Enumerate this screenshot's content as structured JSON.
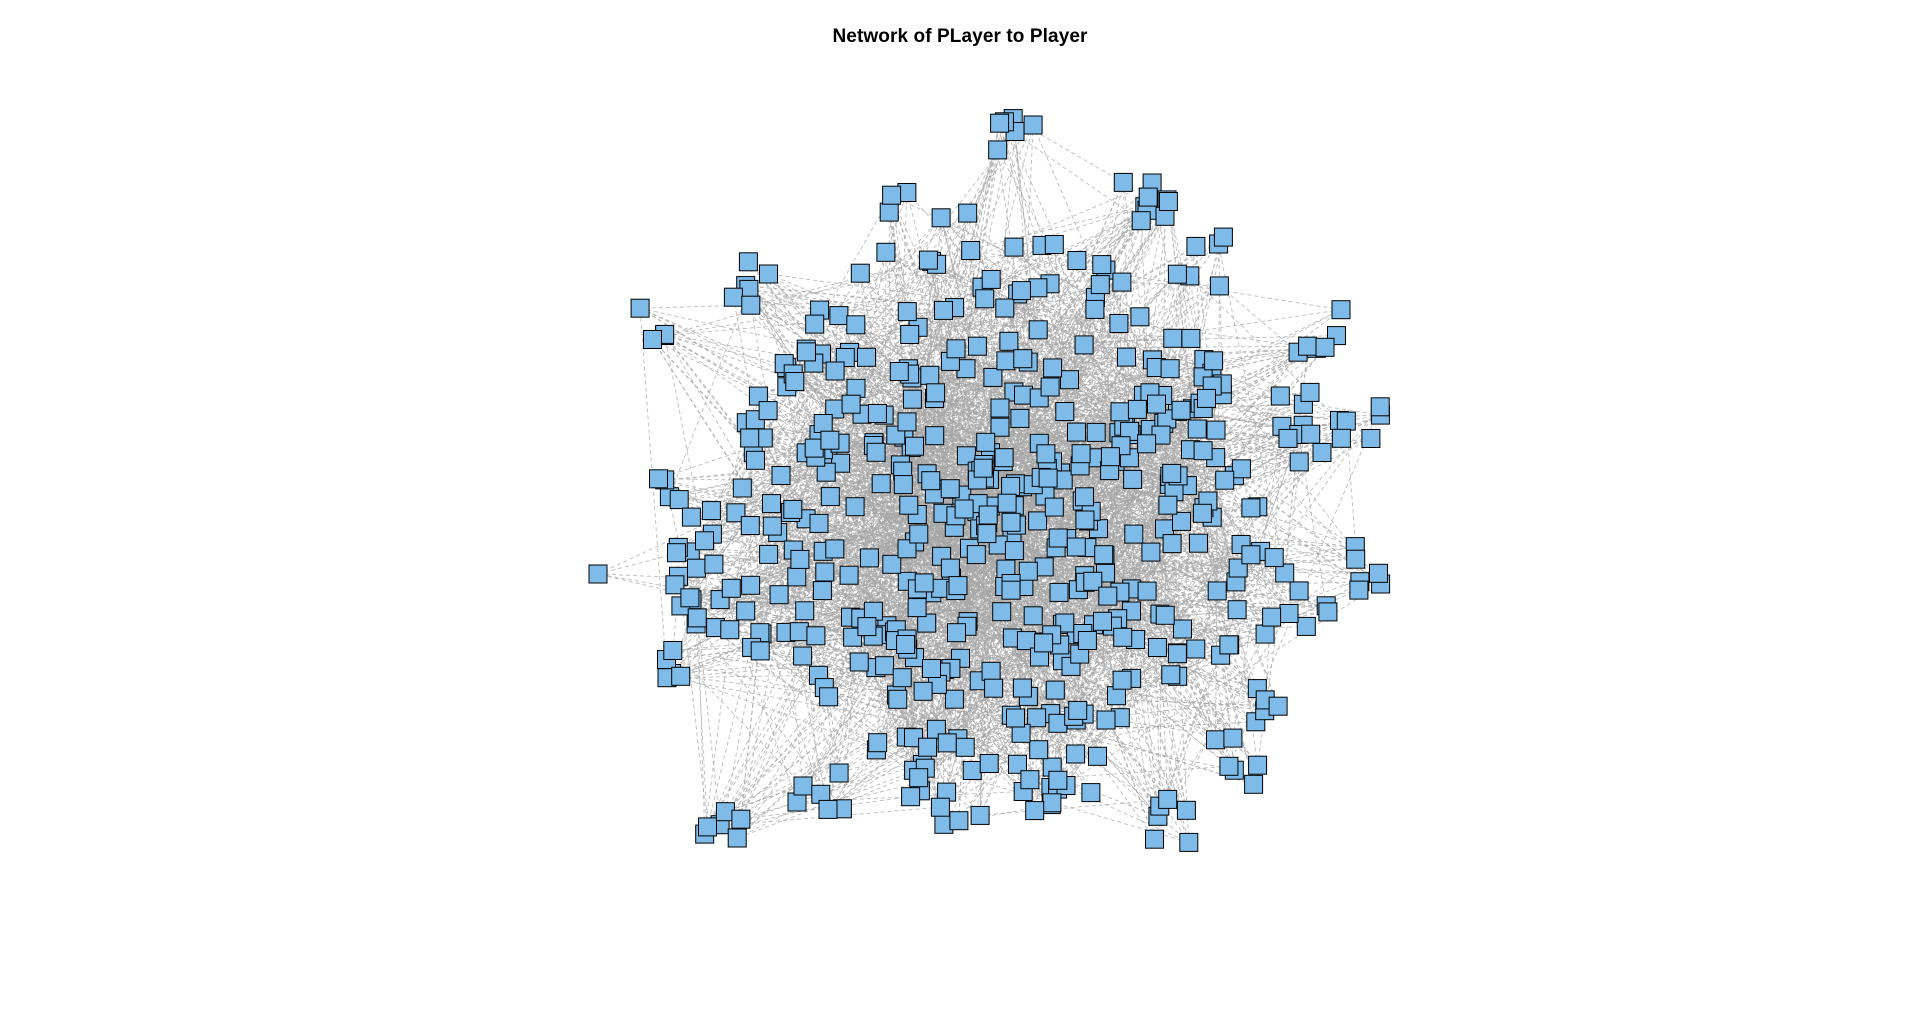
{
  "title": "Network of PLayer to Player",
  "network": {
    "node_shape": "square",
    "node_color": "#7fbbe9",
    "node_border_color": "#000000",
    "edge_color": "#a6a6a6",
    "edge_style": "dashed",
    "layout": "force-directed"
  }
}
